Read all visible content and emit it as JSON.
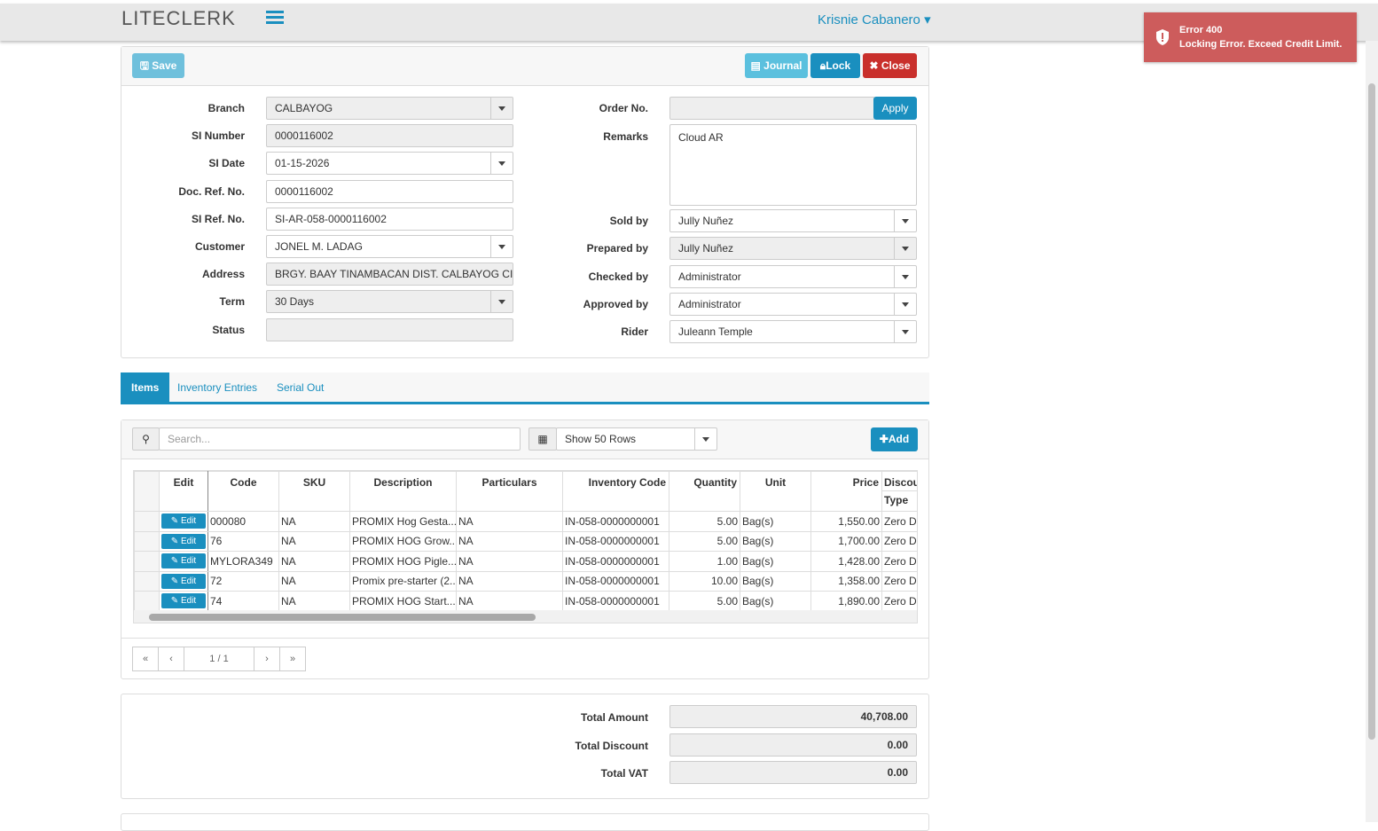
{
  "header": {
    "logo": "LITECLERK",
    "user": "Krisnie Cabanero"
  },
  "toast": {
    "title": "Error 400",
    "message": "Locking Error. Exceed Credit Limit."
  },
  "toolbar": {
    "save": "Save",
    "journal": "Journal",
    "lock": "Lock",
    "close": "Close"
  },
  "form": {
    "left": [
      {
        "label": "Branch",
        "value": "CALBAYOG"
      },
      {
        "label": "SI Number",
        "value": "0000116002"
      },
      {
        "label": "SI Date",
        "value": "01-15-2026"
      },
      {
        "label": "Doc. Ref. No.",
        "value": "0000116002"
      },
      {
        "label": "SI Ref. No.",
        "value": "SI-AR-058-0000116002"
      },
      {
        "label": "Customer",
        "value": "JONEL M. LADAG"
      },
      {
        "label": "Address",
        "value": "BRGY. BAAY TINAMBACAN DIST. CALBAYOG CIT"
      },
      {
        "label": "Term",
        "value": "30 Days"
      },
      {
        "label": "Status"
      }
    ],
    "order": {
      "label": "Order No.",
      "button": "Apply"
    },
    "remarks": {
      "label": "Remarks",
      "value": "Cloud AR"
    },
    "right": [
      {
        "label": "Sold by",
        "value": "Jully Nuñez"
      },
      {
        "label": "Prepared by",
        "value": "Jully Nuñez"
      },
      {
        "label": "Checked by",
        "value": "Administrator"
      },
      {
        "label": "Approved by",
        "value": "Administrator"
      },
      {
        "label": "Rider",
        "value": "Juleann Temple"
      }
    ]
  },
  "tabs": [
    "Items",
    "Inventory Entries",
    "Serial Out"
  ],
  "grid": {
    "search_placeholder": "Search...",
    "rows_option": "Show 50 Rows",
    "add": "Add",
    "edit_button": "Edit",
    "columns": [
      "Edit",
      "Code",
      "SKU",
      "Description",
      "Particulars",
      "Inventory Code",
      "Quantity",
      "Unit",
      "Price",
      "Discount"
    ],
    "subheader": "Type",
    "rows": [
      [
        "000080",
        "NA",
        "PROMIX Hog Gesta...",
        "NA",
        "IN-058-0000000001",
        "5.00",
        "Bag(s)",
        "1,550.00",
        "Zero Discount"
      ],
      [
        "76",
        "NA",
        "PROMIX HOG Grow...",
        "NA",
        "IN-058-0000000001",
        "5.00",
        "Bag(s)",
        "1,700.00",
        "Zero Discount"
      ],
      [
        "MYLORA349",
        "NA",
        "PROMIX HOG Pigle...",
        "NA",
        "IN-058-0000000001",
        "1.00",
        "Bag(s)",
        "1,428.00",
        "Zero Discount"
      ],
      [
        "72",
        "NA",
        "Promix pre-starter (2...",
        "NA",
        "IN-058-0000000001",
        "10.00",
        "Bag(s)",
        "1,358.00",
        "Zero Discount"
      ],
      [
        "74",
        "NA",
        "PROMIX HOG Start...",
        "NA",
        "IN-058-0000000001",
        "5.00",
        "Bag(s)",
        "1,890.00",
        "Zero Discount"
      ]
    ],
    "pager": "1 / 1"
  },
  "totals": [
    {
      "label": "Total Amount",
      "value": "40,708.00"
    },
    {
      "label": "Total Discount",
      "value": "0.00"
    },
    {
      "label": "Total VAT",
      "value": "0.00"
    }
  ]
}
